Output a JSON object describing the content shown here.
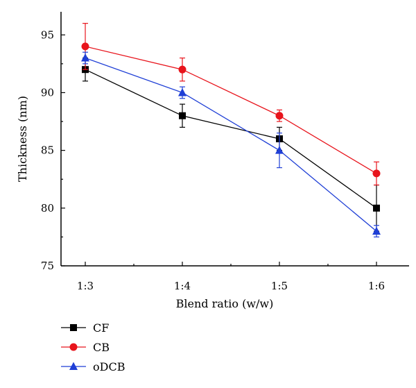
{
  "chart_data": {
    "type": "line",
    "title": "",
    "xlabel": "Blend ratio (w/w)",
    "ylabel": "Thickness (nm)",
    "categories": [
      "1:3",
      "1:4",
      "1:5",
      "1:6"
    ],
    "ylim": [
      75,
      97
    ],
    "yticks": [
      75,
      80,
      85,
      90,
      95
    ],
    "grid": false,
    "legend_position": "bottom-left",
    "series": [
      {
        "name": "CF",
        "color": "#000000",
        "marker": "square",
        "values": [
          92,
          88,
          86,
          80
        ],
        "errors": [
          1.0,
          1.0,
          1.0,
          2.0
        ]
      },
      {
        "name": "CB",
        "color": "#e8141c",
        "marker": "circle",
        "values": [
          94,
          92,
          88,
          83
        ],
        "errors": [
          2.0,
          1.0,
          0.5,
          1.0
        ]
      },
      {
        "name": "oDCB",
        "color": "#1f3fd6",
        "marker": "triangle",
        "values": [
          93,
          90,
          85,
          78
        ],
        "errors": [
          0.5,
          0.5,
          1.5,
          0.5
        ]
      }
    ]
  }
}
